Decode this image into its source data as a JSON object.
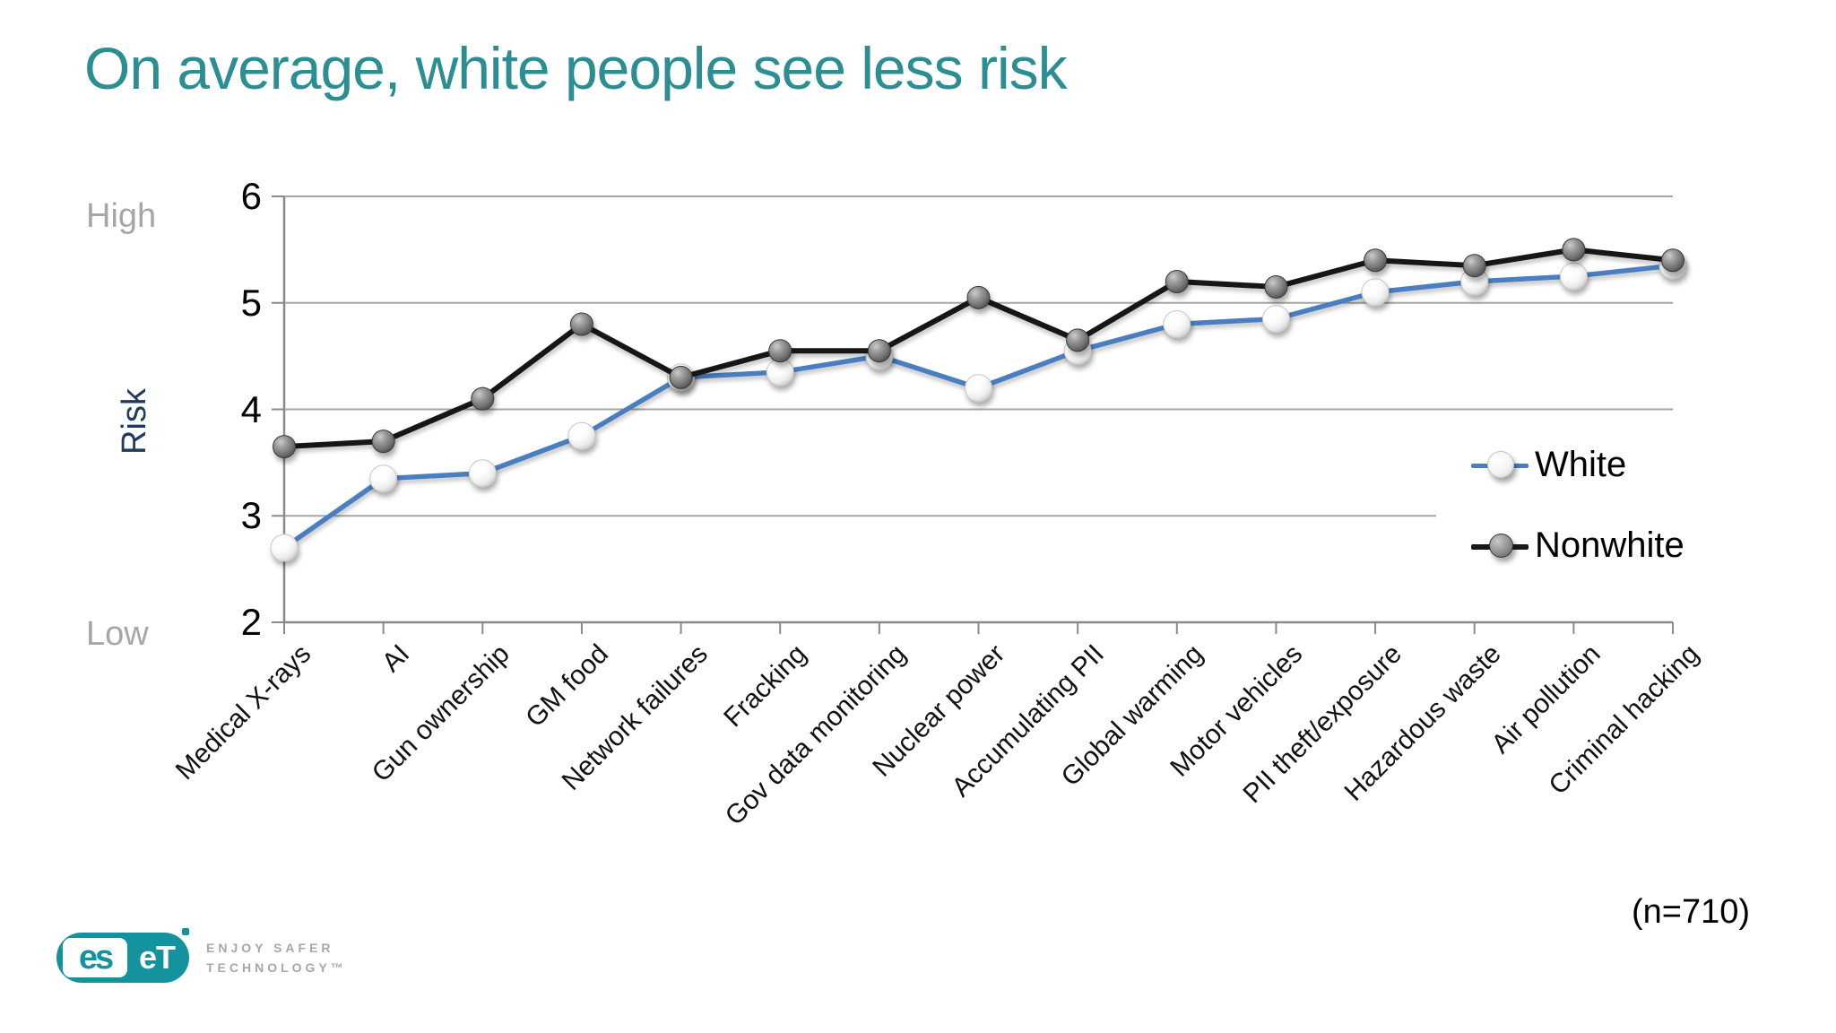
{
  "slide": {
    "title": "On average, white people see less risk",
    "sample_note": "(n=710)"
  },
  "chart_data": {
    "type": "line",
    "title": "On average, white people see less risk",
    "categories": [
      "Medical X-rays",
      "AI",
      "Gun ownership",
      "GM food",
      "Network failures",
      "Fracking",
      "Gov data monitoring",
      "Nuclear power",
      "Accumulating PII",
      "Global warming",
      "Motor vehicles",
      "PII theft/exposure",
      "Hazardous waste",
      "Air pollution",
      "Criminal hacking"
    ],
    "series": [
      {
        "name": "White",
        "color": "#4a7ec0",
        "marker_style": "white-sphere",
        "values": [
          2.7,
          3.35,
          3.4,
          3.75,
          4.3,
          4.35,
          4.5,
          4.2,
          4.55,
          4.8,
          4.85,
          5.1,
          5.2,
          5.25,
          5.35
        ]
      },
      {
        "name": "Nonwhite",
        "color": "#191919",
        "marker_style": "gray-sphere",
        "values": [
          3.65,
          3.7,
          4.1,
          4.8,
          4.3,
          4.55,
          4.55,
          5.05,
          4.65,
          5.2,
          5.15,
          5.4,
          5.35,
          5.5,
          5.4
        ]
      }
    ],
    "xlabel": "",
    "ylabel": "Risk",
    "y_high_label": "High",
    "y_low_label": "Low",
    "yticks": [
      2,
      3,
      4,
      5,
      6
    ],
    "ylim": [
      2,
      6
    ],
    "grid": true,
    "legend_position": "middle-right"
  },
  "colors": {
    "title": "#2b8e93",
    "grid": "#a6a6a6",
    "axis": "#8a8a8a",
    "risk_label": "#1e3a5f",
    "secondary_text": "#a6a6a6",
    "logo_teal": "#13939e",
    "tagline_gray": "#a3a8ac"
  },
  "branding": {
    "logo_es": "es",
    "logo_et": "eT",
    "tagline1": "ENJOY SAFER",
    "tagline2": "TECHNOLOGY™"
  }
}
